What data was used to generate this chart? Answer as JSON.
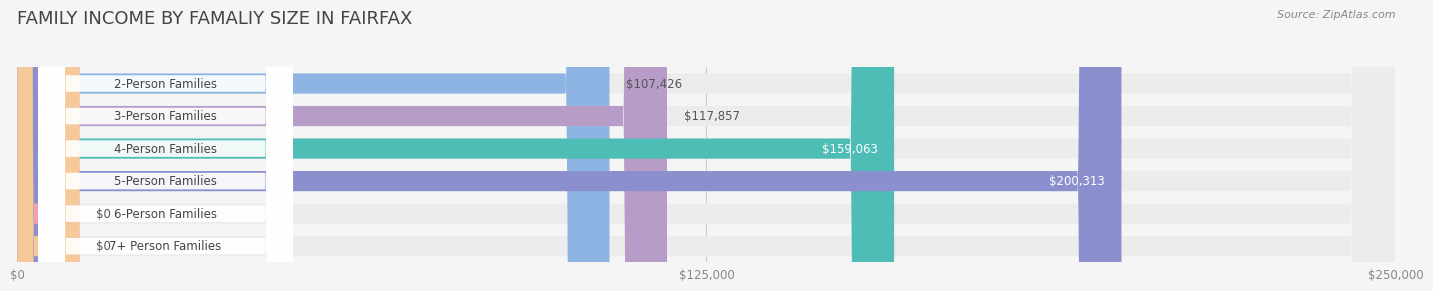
{
  "title": "FAMILY INCOME BY FAMALIY SIZE IN FAIRFAX",
  "source": "Source: ZipAtlas.com",
  "categories": [
    "2-Person Families",
    "3-Person Families",
    "4-Person Families",
    "5-Person Families",
    "6-Person Families",
    "7+ Person Families"
  ],
  "values": [
    107426,
    117857,
    159063,
    200313,
    0,
    0
  ],
  "bar_colors": [
    "#8eb4e3",
    "#b89cc8",
    "#4dbdb5",
    "#8b8fce",
    "#f4a0b0",
    "#f5c99a"
  ],
  "label_colors": [
    "#555555",
    "#555555",
    "#ffffff",
    "#ffffff",
    "#555555",
    "#555555"
  ],
  "x_max": 250000,
  "x_ticks": [
    0,
    125000,
    250000
  ],
  "x_tick_labels": [
    "$0",
    "$125,000",
    "$250,000"
  ],
  "bg_color": "#f5f5f5",
  "bar_bg_color": "#ececec",
  "title_color": "#444444",
  "source_color": "#888888",
  "label_fontsize": 8.5,
  "title_fontsize": 13,
  "category_fontsize": 8.5
}
